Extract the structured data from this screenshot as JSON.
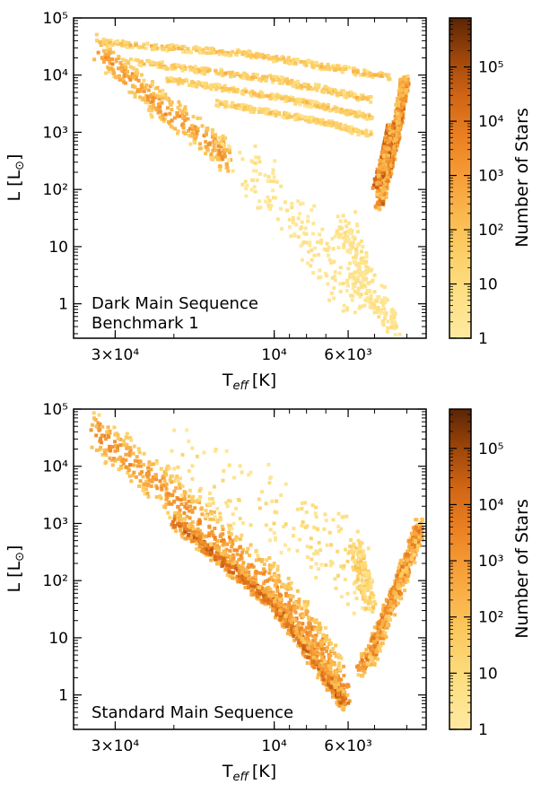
{
  "chart_data": [
    {
      "type": "heatmap",
      "title": "",
      "annotation": [
        "Dark Main Sequence",
        "Benchmark 1"
      ],
      "xlabel": "T",
      "xlabel_sub": "eff",
      "xlabel_unit": "[K]",
      "ylabel": "L [L",
      "ylabel_sun": "⊙",
      "ylabel_close": "]",
      "x_scale": "log-reversed",
      "y_scale": "log",
      "xlim": [
        40000,
        3500
      ],
      "ylim": [
        0.25,
        100000
      ],
      "xticks": [
        {
          "value": 30000,
          "label": "3×10⁴"
        },
        {
          "value": 10000,
          "label": "10⁴"
        },
        {
          "value": 6000,
          "label": "6×10³"
        }
      ],
      "yticks": [
        {
          "value": 1,
          "label": "1"
        },
        {
          "value": 10,
          "label": "10"
        },
        {
          "value": 100,
          "label": "10²"
        },
        {
          "value": 1000,
          "label": "10³"
        },
        {
          "value": 10000,
          "label": "10⁴"
        },
        {
          "value": 100000,
          "label": "10⁵"
        }
      ],
      "colorbar": {
        "label": "Number of Stars",
        "scale": "log",
        "range": [
          1,
          800000
        ],
        "ticks": [
          {
            "value": 1,
            "label": "1"
          },
          {
            "value": 10,
            "label": "10"
          },
          {
            "value": 100,
            "label": "10²"
          },
          {
            "value": 1000,
            "label": "10³"
          },
          {
            "value": 10000,
            "label": "10⁴"
          },
          {
            "value": 100000,
            "label": "10⁵"
          }
        ]
      },
      "features": [
        {
          "name": "main-sequence",
          "path": [
            [
              34000,
              30000
            ],
            [
              22000,
              3000
            ],
            [
              15000,
              600
            ],
            [
              14000,
              350
            ]
          ],
          "width": 0.22,
          "density": 3.0,
          "step": 0.018
        },
        {
          "name": "giant-track-1",
          "path": [
            [
              33000,
              40000
            ],
            [
              12000,
              25000
            ],
            [
              4600,
              10000
            ]
          ],
          "width": 0.045,
          "density": 2.0,
          "step": 0.012
        },
        {
          "name": "giant-track-2",
          "path": [
            [
              26000,
              18000
            ],
            [
              10000,
              9000
            ],
            [
              5200,
              4000
            ]
          ],
          "width": 0.045,
          "density": 2.0,
          "step": 0.012
        },
        {
          "name": "giant-track-3",
          "path": [
            [
              21000,
              9000
            ],
            [
              9000,
              4000
            ],
            [
              5200,
              2000
            ]
          ],
          "width": 0.04,
          "density": 1.9,
          "step": 0.012
        },
        {
          "name": "giant-track-4",
          "path": [
            [
              15000,
              3500
            ],
            [
              7500,
              1700
            ],
            [
              5300,
              1000
            ]
          ],
          "width": 0.04,
          "density": 1.8,
          "step": 0.012
        },
        {
          "name": "red-giant-branch",
          "path": [
            [
              4100,
              9000
            ],
            [
              4400,
              800
            ],
            [
              4900,
              60
            ]
          ],
          "width": 0.09,
          "density": 4.0,
          "step": 0.012
        },
        {
          "name": "red-giant-core",
          "path": [
            [
              4500,
              1500
            ],
            [
              4700,
              400
            ],
            [
              5000,
              120
            ]
          ],
          "width": 0.04,
          "density": 4.6,
          "step": 0.012
        },
        {
          "name": "low-main-sequence",
          "path": [
            [
              6200,
              30
            ],
            [
              5500,
              3
            ],
            [
              4400,
              0.4
            ]
          ],
          "width": 0.2,
          "density": 0.7,
          "step": 0.03
        },
        {
          "name": "scatter-field",
          "path": [
            [
              13000,
              400
            ],
            [
              8000,
              20
            ],
            [
              5500,
              1
            ]
          ],
          "width": 0.3,
          "density": 0.5,
          "step": 0.05
        }
      ]
    },
    {
      "type": "heatmap",
      "title": "",
      "annotation": [
        "Standard Main Sequence"
      ],
      "xlabel": "T",
      "xlabel_sub": "eff",
      "xlabel_unit": "[K]",
      "ylabel": "L [L",
      "ylabel_sun": "⊙",
      "ylabel_close": "]",
      "x_scale": "log-reversed",
      "y_scale": "log",
      "xlim": [
        40000,
        3500
      ],
      "ylim": [
        0.25,
        100000
      ],
      "xticks": [
        {
          "value": 30000,
          "label": "3×10⁴"
        },
        {
          "value": 10000,
          "label": "10⁴"
        },
        {
          "value": 6000,
          "label": "6×10³"
        }
      ],
      "yticks": [
        {
          "value": 1,
          "label": "1"
        },
        {
          "value": 10,
          "label": "10"
        },
        {
          "value": 100,
          "label": "10²"
        },
        {
          "value": 1000,
          "label": "10³"
        },
        {
          "value": 10000,
          "label": "10⁴"
        },
        {
          "value": 100000,
          "label": "10⁵"
        }
      ],
      "colorbar": {
        "label": "Number of Stars",
        "scale": "log",
        "range": [
          1,
          500000
        ],
        "ticks": [
          {
            "value": 1,
            "label": "1"
          },
          {
            "value": 10,
            "label": "10"
          },
          {
            "value": 100,
            "label": "10²"
          },
          {
            "value": 1000,
            "label": "10³"
          },
          {
            "value": 10000,
            "label": "10⁴"
          },
          {
            "value": 100000,
            "label": "10⁵"
          }
        ]
      },
      "features": [
        {
          "name": "main-sequence",
          "path": [
            [
              35000,
              45000
            ],
            [
              20000,
              3000
            ],
            [
              10000,
              80
            ],
            [
              7500,
              10
            ],
            [
              6200,
              1.2
            ]
          ],
          "width": 0.3,
          "density": 3.0,
          "step": 0.018
        },
        {
          "name": "main-sequence-lower-edge",
          "path": [
            [
              20000,
              1200
            ],
            [
              10000,
              40
            ],
            [
              6200,
              0.8
            ]
          ],
          "width": 0.12,
          "density": 4.2,
          "step": 0.014
        },
        {
          "name": "cool-dwarf-branch",
          "path": [
            [
              5600,
              3
            ],
            [
              5200,
              5
            ],
            [
              4200,
              120
            ],
            [
              3700,
              900
            ]
          ],
          "width": 0.14,
          "density": 3.6,
          "step": 0.014
        },
        {
          "name": "giant-fan",
          "path": [
            [
              20000,
              12000
            ],
            [
              8000,
              1000
            ],
            [
              5500,
              120
            ]
          ],
          "width": 0.55,
          "density": 1.0,
          "step": 0.04
        },
        {
          "name": "giant-branch-edge",
          "path": [
            [
              5800,
              400
            ],
            [
              5200,
              40
            ]
          ],
          "width": 0.15,
          "density": 1.6,
          "step": 0.02
        }
      ]
    }
  ]
}
